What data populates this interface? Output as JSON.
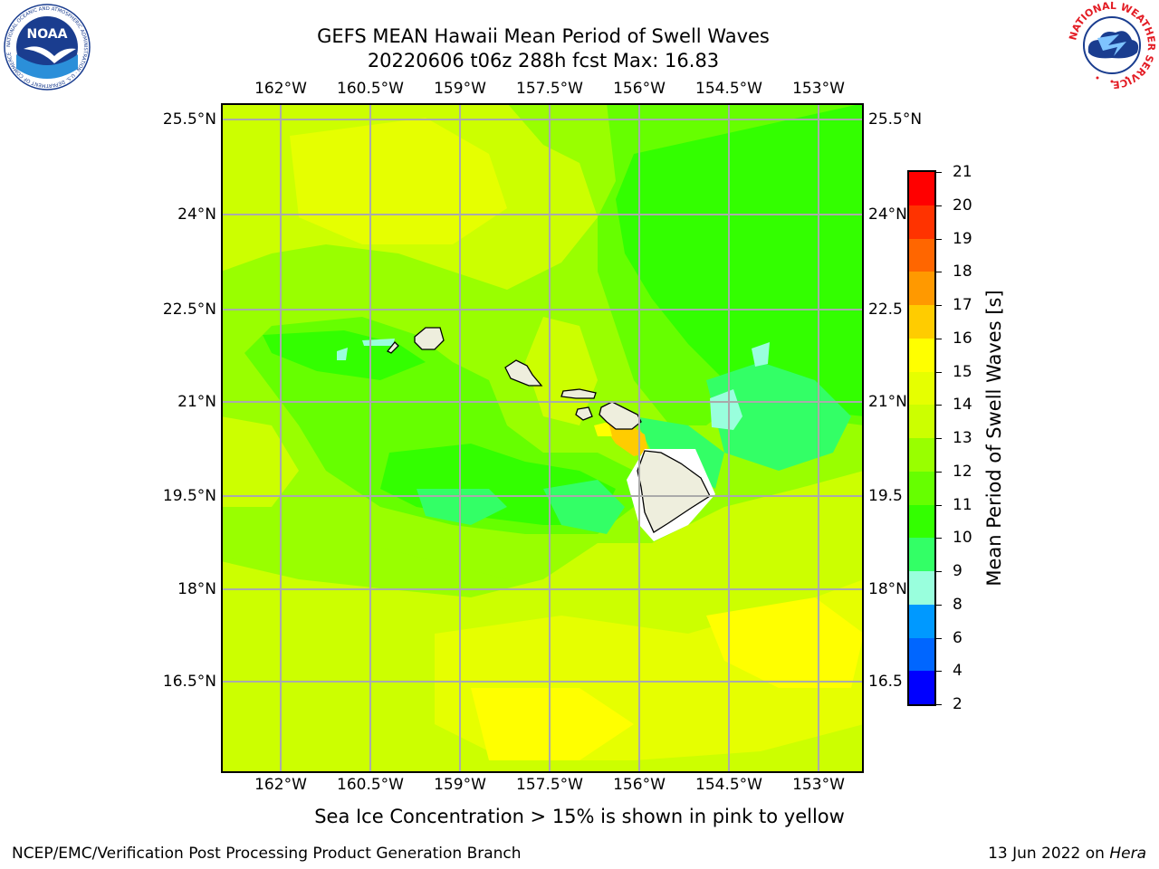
{
  "title_line1": "GEFS MEAN Hawaii Mean Period of Swell Waves",
  "title_line2": "20220606 t06z 288h fcst   Max: 16.83",
  "lon_labels": [
    "162°W",
    "160.5°W",
    "159°W",
    "157.5°W",
    "156°W",
    "154.5°W",
    "153°W"
  ],
  "lat_labels_left": [
    "25.5°N",
    "24°N",
    "22.5°N",
    "21°N",
    "19.5°N",
    "18°N",
    "16.5°N"
  ],
  "lat_labels_right": [
    "25.5°N",
    "24°N",
    "22.5",
    "21°N",
    "19.5",
    "18°N",
    "16.5"
  ],
  "colorbar": {
    "label": "Mean Period of Swell Waves [s]",
    "ticks": [
      "21",
      "20",
      "19",
      "18",
      "17",
      "16",
      "15",
      "14",
      "13",
      "12",
      "11",
      "10",
      "9",
      "8",
      "6",
      "4",
      "2"
    ],
    "colors": [
      "#ff0000",
      "#ff3300",
      "#ff6600",
      "#ff9900",
      "#ffcc00",
      "#ffff00",
      "#e6ff00",
      "#ccff00",
      "#99ff00",
      "#66ff00",
      "#33ff00",
      "#33ff66",
      "#99ffdd",
      "#66ffff",
      "#00ffff",
      "#0099ff",
      "#0066ff",
      "#0000ff"
    ]
  },
  "footnote": "Sea Ice Concentration > 15% is shown in pink to yellow",
  "footer_left": "NCEP/EMC/Verification Post Processing Product Generation Branch",
  "footer_right_date": "13 Jun 2022 on ",
  "footer_right_host": "Hera",
  "logos": {
    "noaa_text": "NOAA",
    "noaa_ring": "NATIONAL OCEANIC AND ATMOSPHERIC ADMINISTRATION · U.S. DEPARTMENT OF COMMERCE",
    "nws_ring": "NATIONAL WEATHER SERVICE"
  },
  "map_colors": {
    "c12": "#66ff00",
    "c11": "#33ff00",
    "c10": "#33ff66",
    "c13": "#99ff00",
    "c14": "#ccff00",
    "c15": "#e6ff00",
    "c16": "#ffff00",
    "c17": "#ffcc00",
    "land": "#eeeedd",
    "grid": "#aaaaaa"
  }
}
